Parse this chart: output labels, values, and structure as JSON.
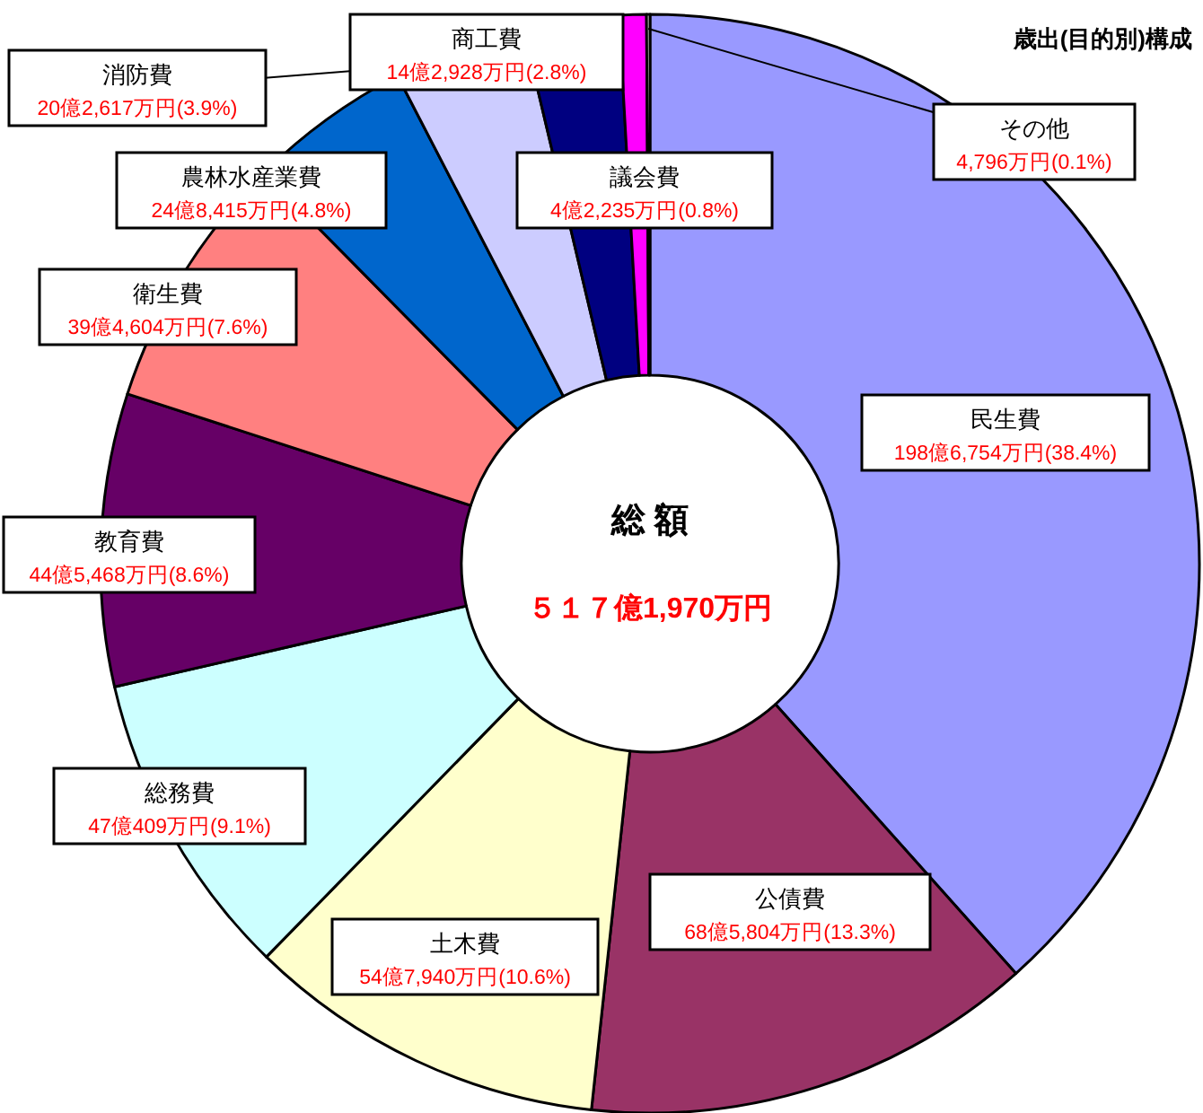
{
  "chart_data": {
    "type": "donut",
    "title": "歳出(目的別)構成",
    "categories": [
      "民生費",
      "公債費",
      "土木費",
      "総務費",
      "教育費",
      "衛生費",
      "農林水産業費",
      "消防費",
      "商工費",
      "議会費",
      "その他"
    ],
    "values": [
      38.4,
      13.3,
      10.6,
      9.1,
      8.6,
      7.6,
      4.8,
      3.9,
      2.8,
      0.8,
      0.1
    ],
    "colors": [
      "#9999ff",
      "#993366",
      "#ffffcc",
      "#ccffff",
      "#660066",
      "#ff8080",
      "#0066cc",
      "#ccccff",
      "#000080",
      "#ff00ff",
      "#ffffff"
    ],
    "value_labels": [
      "198億6,754万円(38.4%)",
      "68億5,804万円(13.3%)",
      "54億7,940万円(10.6%)",
      "47億409万円(9.1%)",
      "44億5,468万円(8.6%)",
      "39億4,604万円(7.6%)",
      "24億8,415万円(4.8%)",
      "20億2,617万円(3.9%)",
      "14億2,928万円(2.8%)",
      "4億2,235万円(0.8%)",
      "4,796万円(0.1%)"
    ],
    "annotations": [
      "総 額",
      "５１７億1,970万円"
    ],
    "legend": false
  }
}
